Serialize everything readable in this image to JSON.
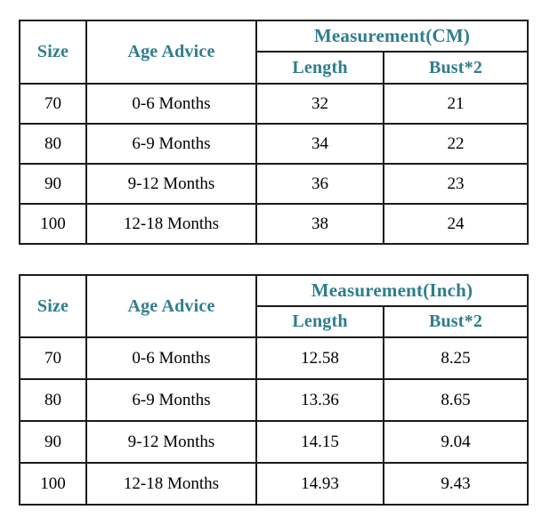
{
  "colors": {
    "accent": "#2e7d8e",
    "border": "#1a1a1a",
    "body_text": "#000000",
    "background": "#ffffff"
  },
  "chart_data": [
    {
      "type": "table",
      "title": "Measurement(CM)",
      "columns": [
        "Size",
        "Age Advice",
        "Length",
        "Bust*2"
      ],
      "rows": [
        [
          "70",
          "0-6 Months",
          "32",
          "21"
        ],
        [
          "80",
          "6-9 Months",
          "34",
          "22"
        ],
        [
          "90",
          "9-12 Months",
          "36",
          "23"
        ],
        [
          "100",
          "12-18 Months",
          "38",
          "24"
        ]
      ]
    },
    {
      "type": "table",
      "title": "Measurement(Inch)",
      "columns": [
        "Size",
        "Age Advice",
        "Length",
        "Bust*2"
      ],
      "rows": [
        [
          "70",
          "0-6 Months",
          "12.58",
          "8.25"
        ],
        [
          "80",
          "6-9 Months",
          "13.36",
          "8.65"
        ],
        [
          "90",
          "9-12 Months",
          "14.15",
          "9.04"
        ],
        [
          "100",
          "12-18 Months",
          "14.93",
          "9.43"
        ]
      ]
    }
  ]
}
